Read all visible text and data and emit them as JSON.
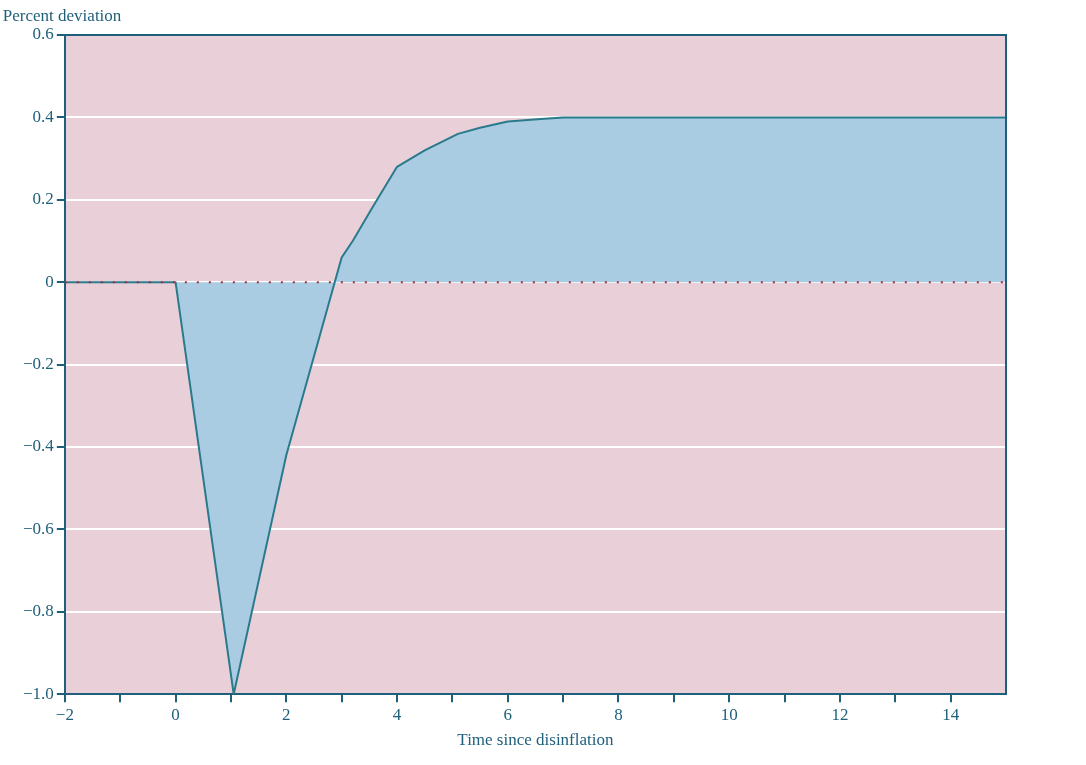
{
  "chart_data": {
    "type": "area",
    "ylabel": "Percent deviation",
    "xlabel": "Time since disinflation",
    "x": [
      -2,
      0,
      1.05,
      2,
      3,
      3.2,
      3.55,
      4,
      4.5,
      5.1,
      5.5,
      6,
      6.6,
      7,
      8,
      10,
      12,
      15
    ],
    "series": [
      {
        "color": "#a9cce3",
        "values": [
          0,
          0,
          -1.0,
          -0.42,
          0.06,
          0.1,
          0.18,
          0.28,
          0.32,
          0.36,
          0.375,
          0.39,
          0.396,
          0.4,
          0.4,
          0.4,
          0.4,
          0.4
        ]
      }
    ],
    "xlim": [
      -2,
      15
    ],
    "ylim": [
      -1,
      0.6
    ],
    "xticks": [
      -2,
      {
        "value": -1,
        "label": null
      },
      0,
      {
        "value": 1,
        "label": null
      },
      2,
      {
        "value": 3,
        "label": null
      },
      4,
      {
        "value": 5,
        "label": null
      },
      6,
      {
        "value": 7,
        "label": null
      },
      8,
      {
        "value": 9,
        "label": null
      },
      10,
      {
        "value": 11,
        "label": null
      },
      12,
      {
        "value": 13,
        "label": null
      },
      14
    ],
    "yticks": [
      {
        "value": -1,
        "label": "−1.0"
      },
      -0.8,
      -0.6,
      -0.4,
      -0.2,
      0,
      0.2,
      0.4,
      0.6
    ],
    "grid": "y",
    "legend": false,
    "ref_lines": [
      {
        "axis": "y",
        "value": 0,
        "label": null,
        "color": "#a0303a",
        "line_style": "dotted"
      }
    ]
  }
}
